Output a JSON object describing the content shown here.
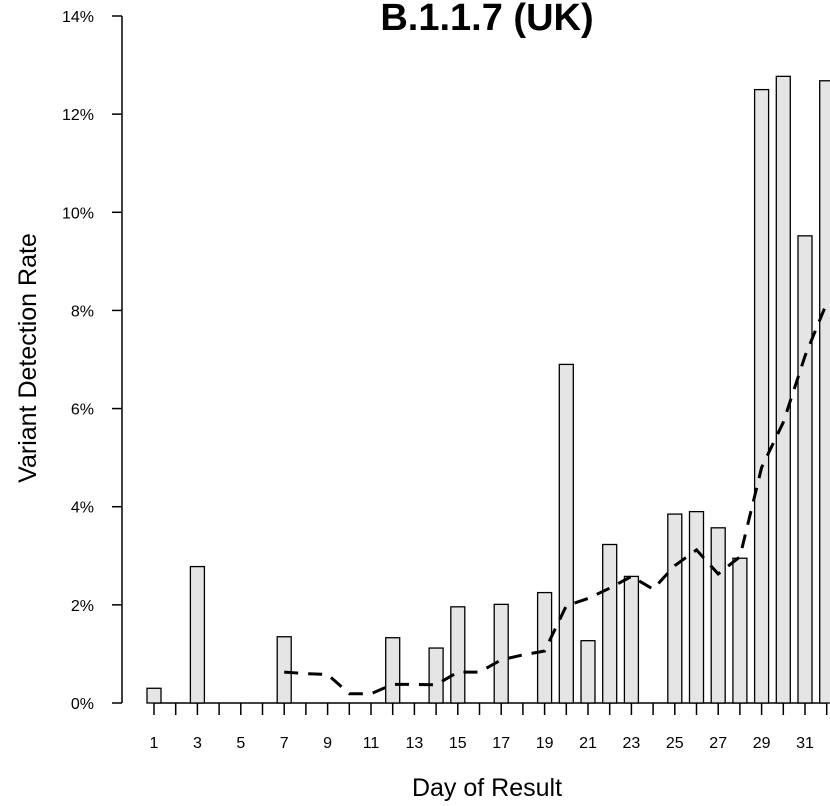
{
  "chart_data": {
    "type": "bar",
    "title": "B.1.1.7 (UK)",
    "xlabel": "Day of Result",
    "ylabel": "Variant Detection Rate",
    "x": [
      1,
      2,
      3,
      4,
      5,
      6,
      7,
      8,
      9,
      10,
      11,
      12,
      13,
      14,
      15,
      16,
      17,
      18,
      19,
      20,
      21,
      22,
      23,
      24,
      25,
      26,
      27,
      28,
      29,
      30,
      31,
      32
    ],
    "x_tick_labels": [
      "1",
      "3",
      "5",
      "7",
      "9",
      "11",
      "13",
      "15",
      "17",
      "19",
      "21",
      "23",
      "25",
      "27",
      "29",
      "31"
    ],
    "ylim": [
      0,
      0.14
    ],
    "y_tick_labels": [
      "0%",
      "2%",
      "4%",
      "6%",
      "8%",
      "10%",
      "12%",
      "14%"
    ],
    "y_ticks": [
      0,
      0.02,
      0.04,
      0.06,
      0.08,
      0.1,
      0.12,
      0.14
    ],
    "series": [
      {
        "type": "bar",
        "values": [
          0.003,
          0,
          0.0278,
          0,
          0,
          0,
          0.0135,
          0,
          0,
          0,
          0,
          0.0133,
          0,
          0.0112,
          0.0196,
          0,
          0.0201,
          0,
          0.0225,
          0.069,
          0.0127,
          0.0323,
          0.0258,
          0,
          0.0385,
          0.039,
          0.0357,
          0.0295,
          0.125,
          0.1277,
          0.0952,
          0.1268
        ],
        "fill": "#e5e5e5",
        "stroke": "#000000"
      },
      {
        "type": "line",
        "style": "dashed",
        "x": [
          7,
          8,
          9,
          10,
          11,
          12,
          13,
          14,
          15,
          16,
          17,
          18,
          19,
          20,
          21,
          22,
          23,
          24,
          25,
          26,
          27,
          28,
          29,
          30,
          31,
          32
        ],
        "values": [
          0.0063,
          0.006,
          0.0058,
          0.0019,
          0.0019,
          0.0038,
          0.0038,
          0.0037,
          0.0063,
          0.0063,
          0.0088,
          0.0098,
          0.0106,
          0.0198,
          0.0213,
          0.0234,
          0.0258,
          0.0232,
          0.028,
          0.0312,
          0.0263,
          0.0298,
          0.048,
          0.0572,
          0.0707,
          0.0815
        ],
        "stroke": "#000000"
      }
    ],
    "grid": false,
    "legend": "none"
  }
}
